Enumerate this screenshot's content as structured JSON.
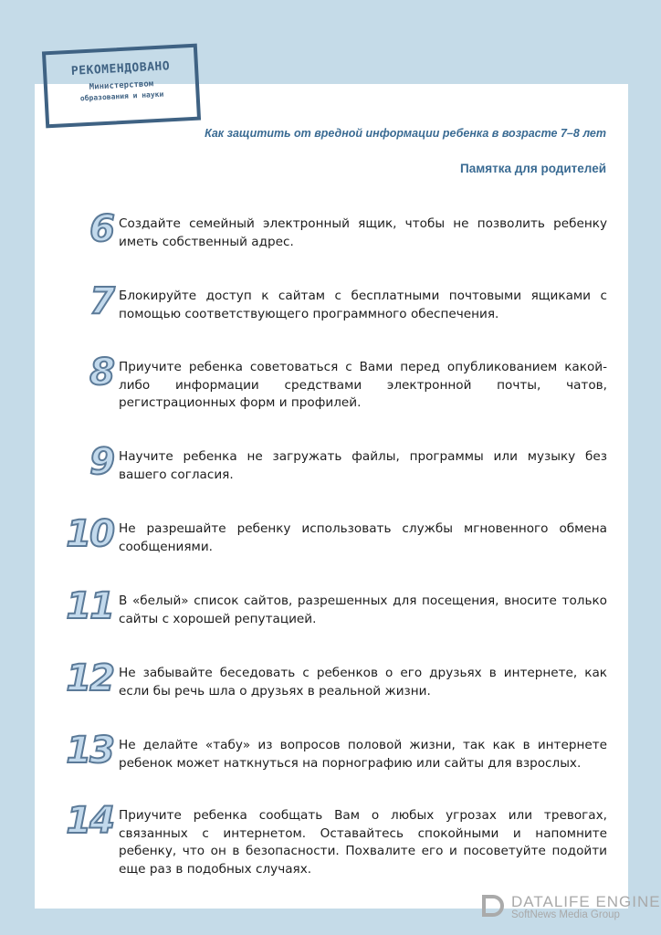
{
  "stamp": {
    "line1": "РЕКОМЕНДОВАНО",
    "line2": "Министерством",
    "line3": "образования и науки"
  },
  "header": {
    "subtitle": "Как защитить от вредной информации ребенка в возрасте 7–8 лет",
    "title": "Памятка для  родителей"
  },
  "items": [
    {
      "number": "6",
      "text": "Создайте семейный электронный ящик, чтобы не позволить ребенку иметь собственный адрес."
    },
    {
      "number": "7",
      "text": "Блокируйте доступ к сайтам с бесплатными почтовыми ящиками с помощью соответствующего программного обеспечения."
    },
    {
      "number": "8",
      "text": "Приучите ребенка советоваться с Вами перед опубликованием какой-либо информации средствами электронной почты, чатов, регистрационных форм и профилей."
    },
    {
      "number": "9",
      "text": "Научите ребенка не загружать файлы, программы или музыку без вашего согласия."
    },
    {
      "number": "10",
      "text": "Не разрешайте ребенку использовать службы мгновенного обмена сообщениями."
    },
    {
      "number": "11",
      "text": "В «белый» список сайтов, разрешенных для посещения, вносите только сайты с хорошей репутацией."
    },
    {
      "number": "12",
      "text": "Не забывайте беседовать с ребенков о его друзьях в интернете, как если бы речь шла о друзьях в реальной жизни."
    },
    {
      "number": "13",
      "text": "Не делайте «табу» из вопросов половой жизни, так как в интернете ребенок может наткнуться на порнографию или сайты для взрослых."
    },
    {
      "number": "14",
      "text": "Приучите ребенка сообщать Вам о любых угрозах или тревогах, связанных с интернетом. Оставайтесь спокойными и напомните ребенку, что он в безопасности. Похвалите его и посоветуйте подойти еще раз в подобных случаях."
    }
  ],
  "watermark": {
    "line1": "DATALIFE ENGINE",
    "line2": "SoftNews Media Group"
  },
  "colors": {
    "background": "#c5dbe8",
    "accent": "#3a6b93",
    "stamp": "#3f6283"
  }
}
